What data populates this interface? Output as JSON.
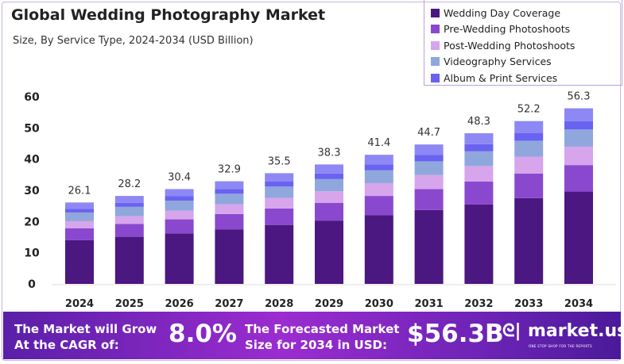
{
  "chart_data": {
    "type": "bar",
    "stacked": true,
    "title": "Global Wedding Photography Market",
    "subtitle": "Size, By Service Type, 2024-2034 (USD Billion)",
    "categories": [
      "2024",
      "2025",
      "2026",
      "2027",
      "2028",
      "2029",
      "2030",
      "2031",
      "2032",
      "2033",
      "2034"
    ],
    "totals": [
      26.1,
      28.2,
      30.4,
      32.9,
      35.5,
      38.3,
      41.4,
      44.7,
      48.3,
      52.2,
      56.3
    ],
    "series": [
      {
        "name": "Wedding Day Coverage",
        "color": "#4b1780",
        "values": [
          14.0,
          15.1,
          16.2,
          17.5,
          18.9,
          20.3,
          22.0,
          23.7,
          25.5,
          27.5,
          29.6
        ]
      },
      {
        "name": "Pre-Wedding Photoshoots",
        "color": "#8a48cf",
        "values": [
          3.8,
          4.1,
          4.5,
          4.9,
          5.3,
          5.7,
          6.2,
          6.7,
          7.3,
          7.9,
          8.5
        ]
      },
      {
        "name": "Post-Wedding Photoshoots",
        "color": "#d6a5ec",
        "values": [
          2.3,
          2.5,
          2.8,
          3.1,
          3.4,
          3.7,
          4.1,
          4.5,
          5.0,
          5.4,
          5.9
        ]
      },
      {
        "name": "Videography Services",
        "color": "#8fa7dc",
        "values": [
          2.8,
          3.0,
          3.2,
          3.4,
          3.6,
          3.9,
          4.1,
          4.4,
          4.7,
          5.1,
          5.5
        ]
      },
      {
        "name": "Album & Print Services",
        "color": "#6a62f0",
        "values": [
          1.2,
          1.3,
          1.4,
          1.5,
          1.6,
          1.8,
          1.9,
          2.1,
          2.3,
          2.5,
          2.7
        ]
      },
      {
        "color": "#8d88f4",
        "values": [
          2.0,
          2.2,
          2.3,
          2.5,
          2.7,
          2.9,
          3.1,
          3.3,
          3.5,
          3.8,
          4.1
        ]
      }
    ],
    "yticks": [
      "0",
      "10",
      "20",
      "30",
      "40",
      "50",
      "60"
    ],
    "ylim": [
      0,
      60
    ],
    "grid": false,
    "legend": "top-right"
  },
  "banner": {
    "cagr_label_1": "The Market will Grow",
    "cagr_label_2": "At the CAGR of:",
    "cagr_value": "8.0%",
    "forecast_label_1": "The Forecasted Market",
    "forecast_label_2": "Size for 2034 in USD:",
    "forecast_value": "$56.3B",
    "logo_text": "market.us",
    "logo_tagline": "ONE STOP SHOP FOR THE REPORTS"
  }
}
